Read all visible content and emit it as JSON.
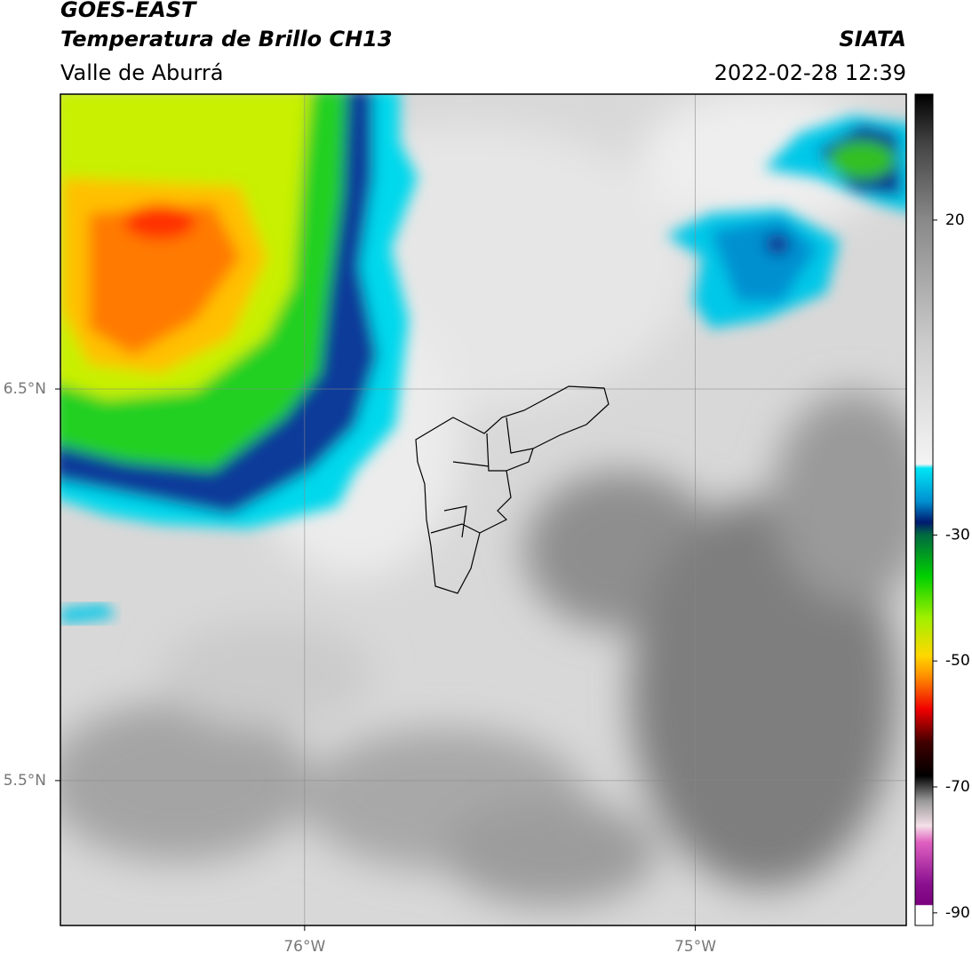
{
  "chart_data": {
    "type": "map",
    "title": "GOES-EAST",
    "subtitle": "Temperatura de Brillo CH13",
    "region": "Valle de Aburrá",
    "source": "SIATA",
    "datetime": "2022-02-28 12:39",
    "xlim": [
      -76.625,
      -74.46
    ],
    "ylim": [
      5.13,
      7.253
    ],
    "xticks": [
      {
        "value": -76,
        "label": "76°W"
      },
      {
        "value": -75,
        "label": "75°W"
      }
    ],
    "yticks": [
      {
        "value": 5.5,
        "label": "5.5°N"
      },
      {
        "value": 6.5,
        "label": "6.5°N"
      }
    ],
    "colorbar": {
      "lim": [
        -92,
        40
      ],
      "ticks": [
        -90,
        -70,
        -50,
        -30,
        20
      ]
    },
    "grid": true
  }
}
